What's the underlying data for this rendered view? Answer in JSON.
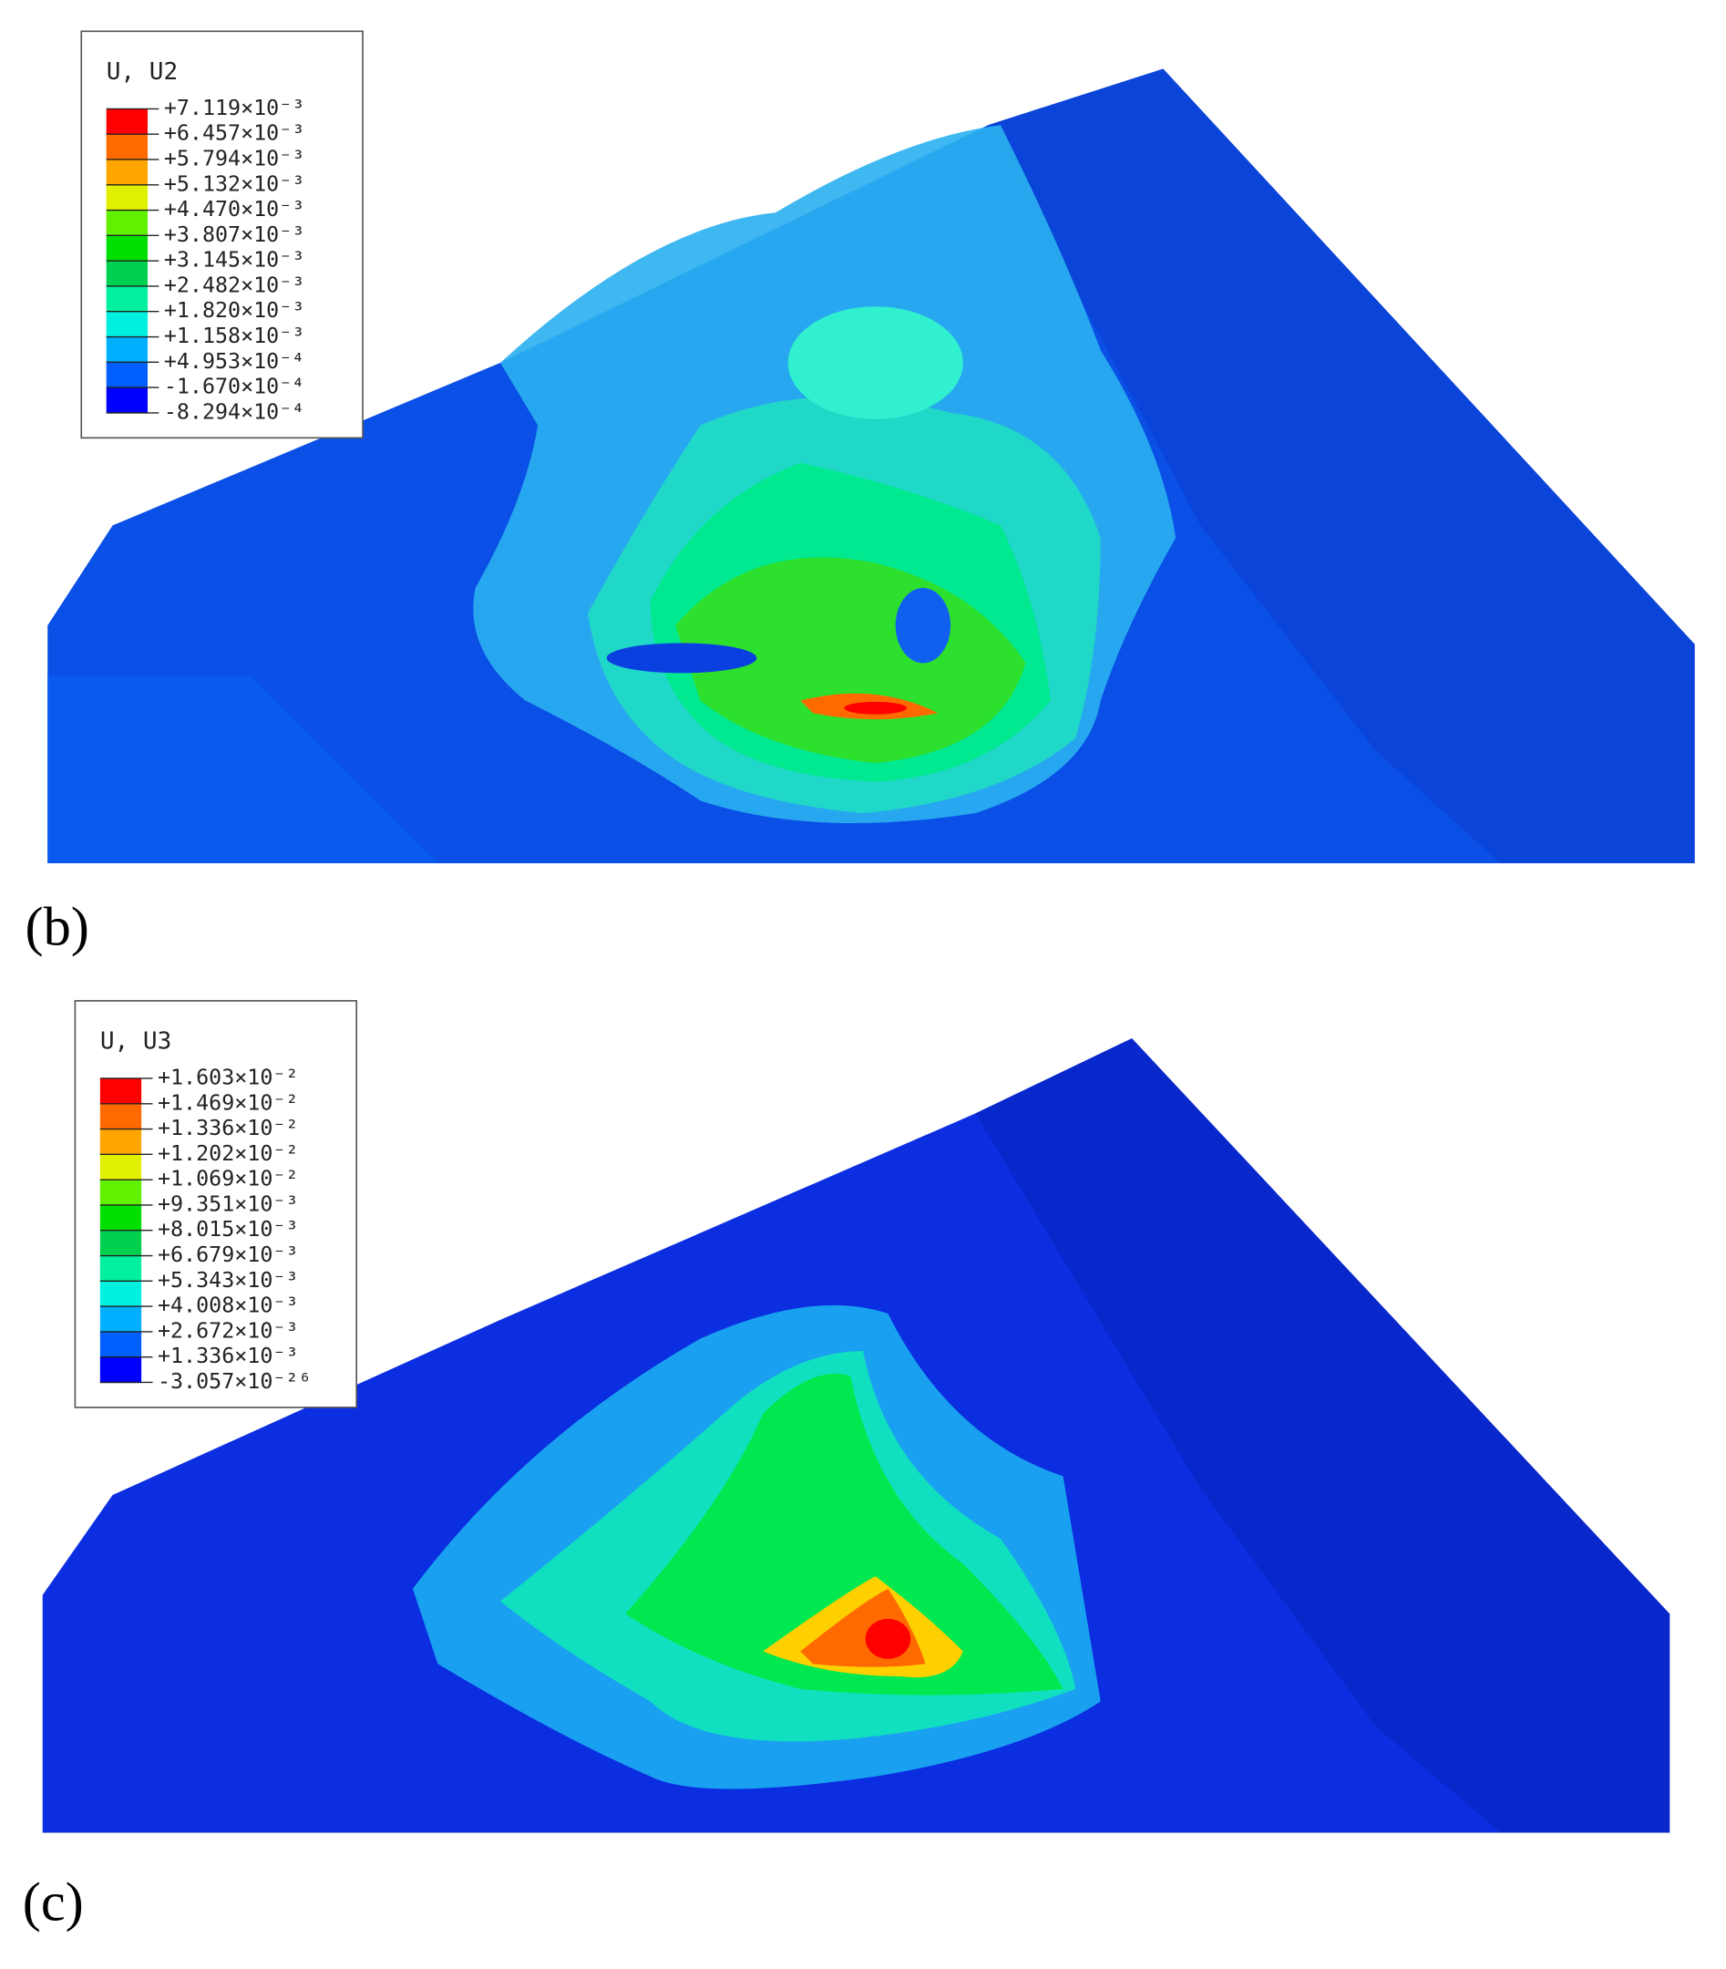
{
  "panels": [
    {
      "label": "(b)",
      "legend": {
        "title": "U, U2",
        "entries": [
          "+7.119×10⁻³",
          "+6.457×10⁻³",
          "+5.794×10⁻³",
          "+5.132×10⁻³",
          "+4.470×10⁻³",
          "+3.807×10⁻³",
          "+3.145×10⁻³",
          "+2.482×10⁻³",
          "+1.820×10⁻³",
          "+1.158×10⁻³",
          "+4.953×10⁻⁴",
          "-1.670×10⁻⁴",
          "-8.294×10⁻⁴"
        ]
      }
    },
    {
      "label": "(c)",
      "legend": {
        "title": "U, U3",
        "entries": [
          "+1.603×10⁻²",
          "+1.469×10⁻²",
          "+1.336×10⁻²",
          "+1.202×10⁻²",
          "+1.069×10⁻²",
          "+9.351×10⁻³",
          "+8.015×10⁻³",
          "+6.679×10⁻³",
          "+5.343×10⁻³",
          "+4.008×10⁻³",
          "+2.672×10⁻³",
          "+1.336×10⁻³",
          "-3.057×10⁻²⁶"
        ]
      }
    }
  ]
}
